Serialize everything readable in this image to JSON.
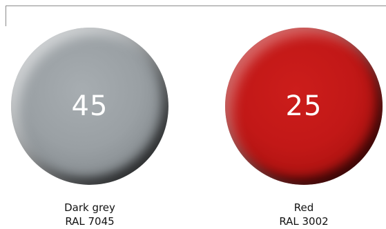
{
  "swatches": [
    {
      "number": "45",
      "name": "Dark grey",
      "code": "RAL 7045",
      "color": "#9aa0a4"
    },
    {
      "number": "25",
      "name": "Red",
      "code": "RAL 3002",
      "color": "#c21817"
    }
  ]
}
